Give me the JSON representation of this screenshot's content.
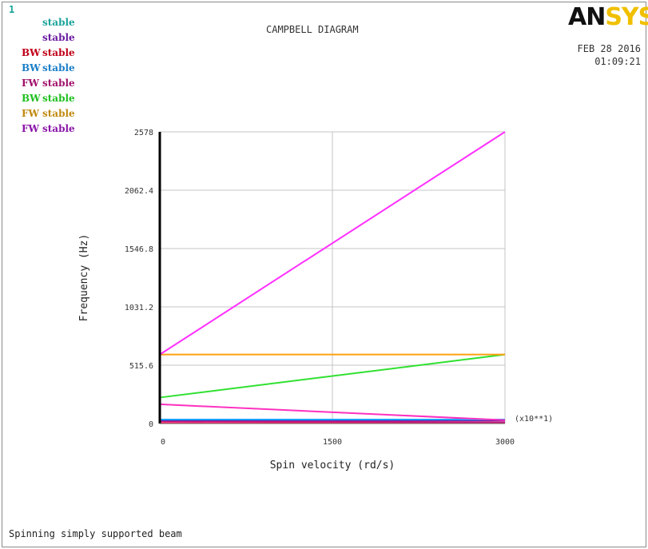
{
  "window_number": "1",
  "logo": {
    "main": "AN",
    "accent": "SYS"
  },
  "date": "FEB 28 2016",
  "time": "01:09:21",
  "footer_note": "Spinning simply supported beam",
  "legend": [
    {
      "whirl": "",
      "status": "stable",
      "color": "#1aa39a"
    },
    {
      "whirl": "",
      "status": "stable",
      "color": "#6a1aa0"
    },
    {
      "whirl": "BW",
      "status": "stable",
      "color": "#c00018"
    },
    {
      "whirl": "BW",
      "status": "stable",
      "color": "#1a7ec8"
    },
    {
      "whirl": "FW",
      "status": "stable",
      "color": "#a0106a"
    },
    {
      "whirl": "BW",
      "status": "stable",
      "color": "#1fbf1f"
    },
    {
      "whirl": "FW",
      "status": "stable",
      "color": "#c08a10"
    },
    {
      "whirl": "FW",
      "status": "stable",
      "color": "#8a14a8"
    }
  ],
  "chart_data": {
    "type": "line",
    "title": "CAMPBELL DIAGRAM",
    "xlabel": "Spin velocity (rd/s)",
    "ylabel": "Frequency (Hz)",
    "x_multiplier_label": "(x10**1)",
    "xlim": [
      0,
      3000
    ],
    "ylim": [
      0,
      2578
    ],
    "x_ticks": [
      {
        "value": 0,
        "label": "0"
      },
      {
        "value": 1500,
        "label": "1500"
      },
      {
        "value": 3000,
        "label": "3000"
      }
    ],
    "y_ticks": [
      {
        "value": 0,
        "label": "0"
      },
      {
        "value": 515.6,
        "label": "515.6"
      },
      {
        "value": 1031.2,
        "label": "1031.2"
      },
      {
        "value": 1546.8,
        "label": "1546.8"
      },
      {
        "value": 2062.4,
        "label": "2062.4"
      },
      {
        "value": 2578,
        "label": "2578"
      }
    ],
    "grid": true,
    "series": [
      {
        "x": [
          0,
          3000
        ],
        "y": [
          5,
          5
        ],
        "color": "#ff1a60"
      },
      {
        "x": [
          0,
          3000
        ],
        "y": [
          20,
          12
        ],
        "color": "#c01a80"
      },
      {
        "x": [
          0,
          3000
        ],
        "y": [
          28,
          28
        ],
        "color": "#6a1aa0"
      },
      {
        "x": [
          0,
          3000
        ],
        "y": [
          35,
          35
        ],
        "color": "#1aa0ff"
      },
      {
        "x": [
          0,
          3000
        ],
        "y": [
          170,
          30
        ],
        "color": "#ff30c0"
      },
      {
        "x": [
          0,
          3000
        ],
        "y": [
          230,
          610
        ],
        "color": "#30e030"
      },
      {
        "x": [
          0,
          3000
        ],
        "y": [
          610,
          610
        ],
        "color": "#ffa010"
      },
      {
        "x": [
          0,
          3000
        ],
        "y": [
          610,
          2578
        ],
        "color": "#ff30ff"
      }
    ]
  }
}
